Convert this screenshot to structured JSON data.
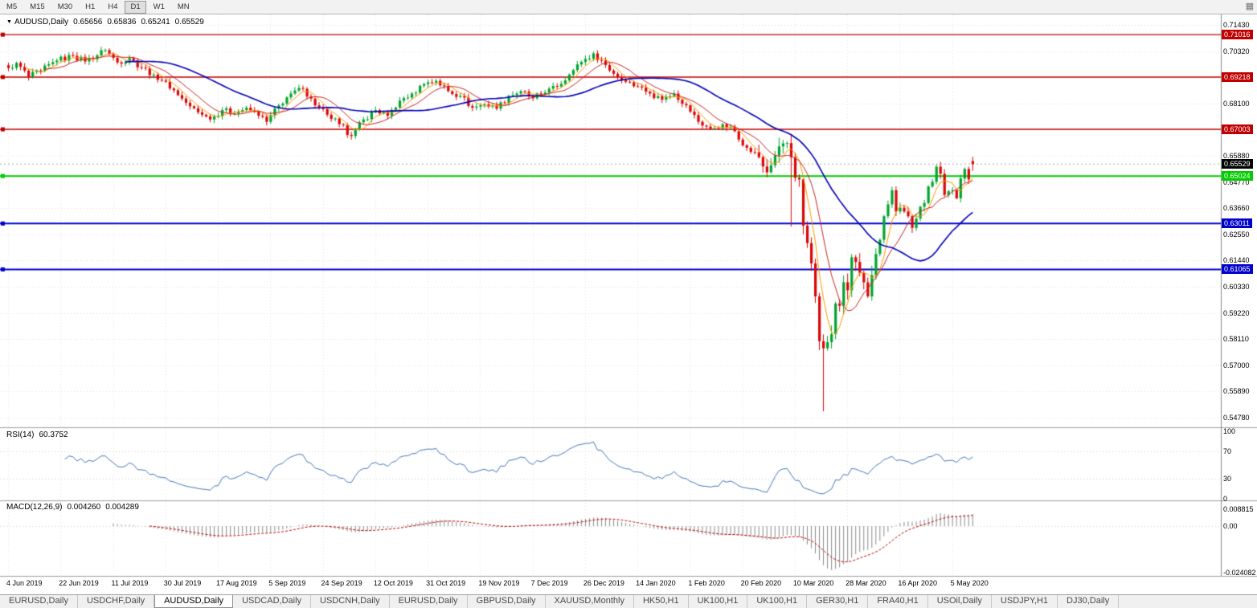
{
  "toolbar": {
    "timeframes": [
      "M5",
      "M15",
      "M30",
      "H1",
      "H4",
      "D1",
      "W1",
      "MN"
    ],
    "active_timeframe": "D1",
    "right_icon": "grid-icon"
  },
  "chart_header": {
    "symbol": "AUDUSD,Daily",
    "open": "0.65656",
    "high": "0.65836",
    "low": "0.65241",
    "close": "0.65529"
  },
  "price_axis": {
    "ticks": [
      "0.71430",
      "0.70320",
      "0.68100",
      "0.65880",
      "0.64770",
      "0.63660",
      "0.62550",
      "0.61440",
      "0.60330",
      "0.59220",
      "0.58110",
      "0.57000",
      "0.55890",
      "0.54780"
    ],
    "current_price": "0.65529",
    "current_price_bg": "#000000"
  },
  "hlines": [
    {
      "price": 0.71016,
      "label": "0.71016",
      "color": "#C00000",
      "width": 1.4
    },
    {
      "price": 0.69218,
      "label": "0.69218",
      "color": "#C00000",
      "width": 1.4
    },
    {
      "price": 0.67003,
      "label": "0.67003",
      "color": "#C00000",
      "width": 1.4
    },
    {
      "price": 0.65024,
      "label": "0.65024",
      "color": "#00CC00",
      "width": 2
    },
    {
      "price": 0.63011,
      "label": "0.63011",
      "color": "#0000CC",
      "width": 2
    },
    {
      "price": 0.61065,
      "label": "0.61065",
      "color": "#0000CC",
      "width": 2
    }
  ],
  "rsi_panel": {
    "name": "RSI(14)",
    "value": "60.3752",
    "ticks": [
      "100",
      "70",
      "30",
      "0"
    ],
    "line_color": "#4876B8"
  },
  "macd_panel": {
    "name": "MACD(12,26,9)",
    "value_main": "0.004260",
    "value_signal": "0.004289",
    "ticks": [
      "0.008815",
      "0.00",
      "-0.024082"
    ],
    "hist_color": "#8C8C8C",
    "signal_color": "#C00000"
  },
  "date_axis": {
    "labels": [
      "4 Jun 2019",
      "22 Jun 2019",
      "11 Jul 2019",
      "30 Jul 2019",
      "17 Aug 2019",
      "5 Sep 2019",
      "24 Sep 2019",
      "12 Oct 2019",
      "31 Oct 2019",
      "19 Nov 2019",
      "7 Dec 2019",
      "26 Dec 2019",
      "14 Jan 2020",
      "1 Feb 2020",
      "20 Feb 2020",
      "10 Mar 2020",
      "28 Mar 2020",
      "16 Apr 2020",
      "5 May 2020"
    ],
    "bars_per_label": 13
  },
  "tabs": {
    "items": [
      "EURUSD,Daily",
      "USDCHF,Daily",
      "AUDUSD,Daily",
      "USDCAD,Daily",
      "USDCNH,Daily",
      "EURUSD,Daily",
      "GBPUSD,Daily",
      "XAUUSD,Monthly",
      "HK50,H1",
      "UK100,H1",
      "UK100,H1",
      "GER30,H1",
      "FRA40,H1",
      "USOil,Daily",
      "USDJPY,H1",
      "DJ30,Daily"
    ],
    "active_index": 2
  },
  "chart_data": {
    "type": "candlestick",
    "symbol": "AUDUSD",
    "timeframe": "Daily",
    "bars": 240,
    "ylim": [
      0.5438,
      0.7187
    ],
    "up_color": "#00A52E",
    "down_color": "#DB0606",
    "current_price": 0.65529,
    "anchors": [
      [
        0,
        0.696
      ],
      [
        2,
        0.6982
      ],
      [
        5,
        0.6922
      ],
      [
        8,
        0.6948
      ],
      [
        12,
        0.6992
      ],
      [
        16,
        0.7012
      ],
      [
        19,
        0.6988
      ],
      [
        24,
        0.7036
      ],
      [
        27,
        0.6984
      ],
      [
        30,
        0.7002
      ],
      [
        33,
        0.6962
      ],
      [
        36,
        0.6932
      ],
      [
        39,
        0.6902
      ],
      [
        42,
        0.6845
      ],
      [
        45,
        0.6798
      ],
      [
        48,
        0.6762
      ],
      [
        50,
        0.6742
      ],
      [
        53,
        0.6782
      ],
      [
        56,
        0.6768
      ],
      [
        59,
        0.6792
      ],
      [
        62,
        0.6758
      ],
      [
        64,
        0.6732
      ],
      [
        67,
        0.6802
      ],
      [
        70,
        0.6852
      ],
      [
        73,
        0.6872
      ],
      [
        76,
        0.6802
      ],
      [
        79,
        0.6762
      ],
      [
        82,
        0.6722
      ],
      [
        85,
        0.6672
      ],
      [
        88,
        0.6742
      ],
      [
        91,
        0.6782
      ],
      [
        94,
        0.6758
      ],
      [
        97,
        0.6822
      ],
      [
        100,
        0.6852
      ],
      [
        103,
        0.6892
      ],
      [
        106,
        0.6906
      ],
      [
        109,
        0.6862
      ],
      [
        112,
        0.6842
      ],
      [
        115,
        0.6792
      ],
      [
        118,
        0.6806
      ],
      [
        121,
        0.6788
      ],
      [
        124,
        0.6842
      ],
      [
        127,
        0.6862
      ],
      [
        130,
        0.6832
      ],
      [
        133,
        0.6856
      ],
      [
        136,
        0.6882
      ],
      [
        139,
        0.6932
      ],
      [
        142,
        0.6986
      ],
      [
        145,
        0.7022
      ],
      [
        147,
        0.6992
      ],
      [
        150,
        0.6936
      ],
      [
        153,
        0.6902
      ],
      [
        156,
        0.6882
      ],
      [
        159,
        0.6852
      ],
      [
        162,
        0.6826
      ],
      [
        165,
        0.6852
      ],
      [
        168,
        0.6802
      ],
      [
        171,
        0.6732
      ],
      [
        174,
        0.6702
      ],
      [
        177,
        0.6722
      ],
      [
        180,
        0.6692
      ],
      [
        183,
        0.6622
      ],
      [
        186,
        0.6582
      ],
      [
        188,
        0.6518
      ],
      [
        189,
        0.6548
      ],
      [
        191,
        0.6628
      ],
      [
        193,
        0.6642
      ],
      [
        194,
        0.6582
      ],
      [
        195,
        0.6495
      ],
      [
        196,
        0.6488
      ],
      [
        197,
        0.6292
      ],
      [
        198,
        0.6218
      ],
      [
        199,
        0.6132
      ],
      [
        200,
        0.5992
      ],
      [
        201,
        0.5802
      ],
      [
        202,
        0.5772
      ],
      [
        203,
        0.5798
      ],
      [
        204,
        0.5832
      ],
      [
        205,
        0.5962
      ],
      [
        206,
        0.5952
      ],
      [
        207,
        0.6052
      ],
      [
        208,
        0.6018
      ],
      [
        209,
        0.6158
      ],
      [
        210,
        0.6138
      ],
      [
        211,
        0.6092
      ],
      [
        212,
        0.6052
      ],
      [
        213,
        0.5992
      ],
      [
        214,
        0.6082
      ],
      [
        215,
        0.6172
      ],
      [
        216,
        0.6232
      ],
      [
        217,
        0.6332
      ],
      [
        218,
        0.6382
      ],
      [
        219,
        0.6442
      ],
      [
        220,
        0.6352
      ],
      [
        221,
        0.6368
      ],
      [
        222,
        0.6352
      ],
      [
        223,
        0.6332
      ],
      [
        224,
        0.6282
      ],
      [
        225,
        0.6322
      ],
      [
        226,
        0.6372
      ],
      [
        227,
        0.6388
      ],
      [
        228,
        0.6458
      ],
      [
        229,
        0.6478
      ],
      [
        230,
        0.6542
      ],
      [
        231,
        0.6512
      ],
      [
        232,
        0.6422
      ],
      [
        233,
        0.6438
      ],
      [
        234,
        0.6442
      ],
      [
        235,
        0.6408
      ],
      [
        236,
        0.6492
      ],
      [
        237,
        0.6532
      ],
      [
        238,
        0.6488
      ],
      [
        239,
        0.65529
      ]
    ],
    "wick_overrides": {
      "194": {
        "low": 0.6288
      },
      "202": {
        "low": 0.5505
      }
    },
    "last_candle": [
      0.65656,
      0.65836,
      0.65241,
      0.65529
    ],
    "moving_averages": [
      {
        "period": 5,
        "type": "sma",
        "color": "#FF9900",
        "width": 1
      },
      {
        "period": 10,
        "type": "sma",
        "color": "#CC2222",
        "width": 1
      },
      {
        "period": 30,
        "type": "sma",
        "color": "#0000B8",
        "width": 1.6
      }
    ],
    "indicators": {
      "rsi": {
        "period": 14,
        "levels": [
          70,
          30
        ]
      },
      "macd": {
        "fast": 12,
        "slow": 26,
        "signal": 9,
        "ylim": [
          -0.0255,
          0.0105
        ]
      }
    }
  }
}
